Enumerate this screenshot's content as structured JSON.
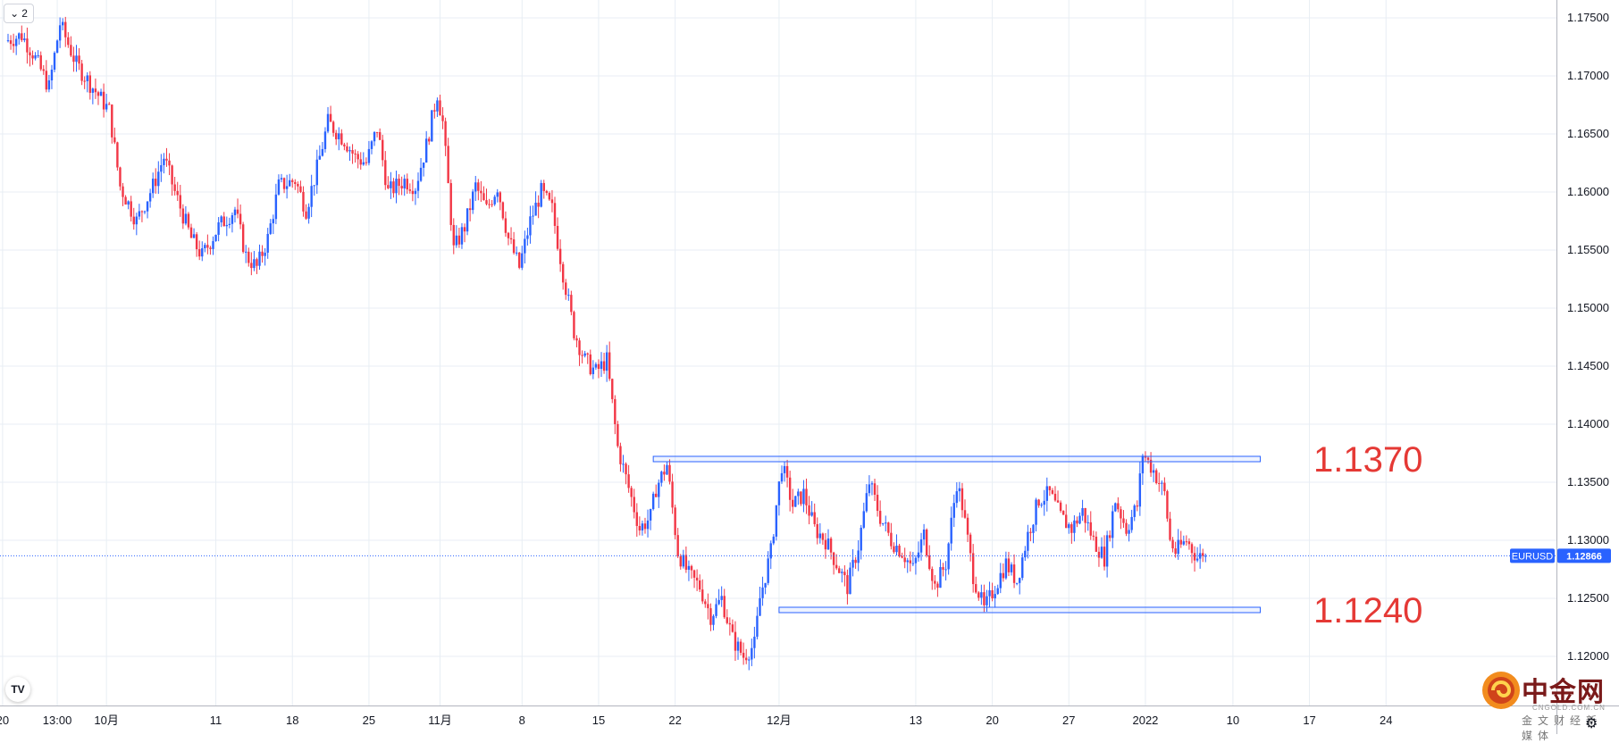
{
  "ui": {
    "collapse_count": "2",
    "symbol": "EURUSD",
    "current_price_label": "1.12866",
    "watermark_cn": "中金网",
    "watermark_site": "CNGOLD.COM.CN",
    "watermark_sub": "金文财经新媒体",
    "logo_text": "TV"
  },
  "colors": {
    "up": "#2962ff",
    "down": "#f23645",
    "grid": "#e8eef4",
    "level_line": "#2962ff",
    "level_text": "#e53935",
    "price_tag_bg": "#2962ff"
  },
  "chart_data": {
    "type": "candlestick",
    "title": "",
    "xlabel": "",
    "ylabel": "",
    "ylim": [
      1.1188,
      1.1758
    ],
    "price_ticks": [
      "1.17500",
      "1.17000",
      "1.16500",
      "1.16000",
      "1.15500",
      "1.15000",
      "1.14500",
      "1.14000",
      "1.13500",
      "1.13000",
      "1.12500",
      "1.12000"
    ],
    "time_ticks": [
      {
        "label": "20",
        "d": -1
      },
      {
        "label": "13:00",
        "d": 9
      },
      {
        "label": "10月",
        "d": 18
      },
      {
        "label": "11",
        "d": 38
      },
      {
        "label": "18",
        "d": 52
      },
      {
        "label": "25",
        "d": 66
      },
      {
        "label": "11月",
        "d": 79
      },
      {
        "label": "8",
        "d": 94
      },
      {
        "label": "15",
        "d": 108
      },
      {
        "label": "22",
        "d": 122
      },
      {
        "label": "12月",
        "d": 141
      },
      {
        "label": "13",
        "d": 166
      },
      {
        "label": "20",
        "d": 180
      },
      {
        "label": "27",
        "d": 194
      },
      {
        "label": "2022",
        "d": 208
      },
      {
        "label": "10",
        "d": 224
      },
      {
        "label": "17",
        "d": 238
      },
      {
        "label": "24",
        "d": 252
      }
    ],
    "grid": true,
    "current_price": 1.12866,
    "resistance": {
      "value": 1.137,
      "label": "1.1370",
      "d_start": 118,
      "d_end": 229
    },
    "support": {
      "value": 1.124,
      "label": "1.1240",
      "d_start": 141,
      "d_end": 229
    },
    "path": [
      {
        "d": 0,
        "p": 1.173
      },
      {
        "d": 3,
        "p": 1.1735
      },
      {
        "d": 5,
        "p": 1.172
      },
      {
        "d": 8,
        "p": 1.169
      },
      {
        "d": 10,
        "p": 1.1745
      },
      {
        "d": 13,
        "p": 1.171
      },
      {
        "d": 16,
        "p": 1.169
      },
      {
        "d": 19,
        "p": 1.167
      },
      {
        "d": 21,
        "p": 1.1605
      },
      {
        "d": 24,
        "p": 1.1575
      },
      {
        "d": 27,
        "p": 1.1605
      },
      {
        "d": 29,
        "p": 1.163
      },
      {
        "d": 31,
        "p": 1.16
      },
      {
        "d": 34,
        "p": 1.156
      },
      {
        "d": 36,
        "p": 1.1545
      },
      {
        "d": 39,
        "p": 1.157
      },
      {
        "d": 42,
        "p": 1.1585
      },
      {
        "d": 44,
        "p": 1.1545
      },
      {
        "d": 46,
        "p": 1.1535
      },
      {
        "d": 48,
        "p": 1.156
      },
      {
        "d": 50,
        "p": 1.1605
      },
      {
        "d": 53,
        "p": 1.161
      },
      {
        "d": 55,
        "p": 1.1585
      },
      {
        "d": 57,
        "p": 1.162
      },
      {
        "d": 59,
        "p": 1.166
      },
      {
        "d": 62,
        "p": 1.1645
      },
      {
        "d": 64,
        "p": 1.163
      },
      {
        "d": 66,
        "p": 1.1625
      },
      {
        "d": 68,
        "p": 1.1655
      },
      {
        "d": 70,
        "p": 1.16
      },
      {
        "d": 73,
        "p": 1.161
      },
      {
        "d": 75,
        "p": 1.1605
      },
      {
        "d": 77,
        "p": 1.164
      },
      {
        "d": 79,
        "p": 1.1685
      },
      {
        "d": 80,
        "p": 1.166
      },
      {
        "d": 82,
        "p": 1.155
      },
      {
        "d": 84,
        "p": 1.157
      },
      {
        "d": 86,
        "p": 1.1605
      },
      {
        "d": 88,
        "p": 1.1585
      },
      {
        "d": 90,
        "p": 1.1605
      },
      {
        "d": 92,
        "p": 1.156
      },
      {
        "d": 94,
        "p": 1.1535
      },
      {
        "d": 96,
        "p": 1.1575
      },
      {
        "d": 98,
        "p": 1.16
      },
      {
        "d": 100,
        "p": 1.1585
      },
      {
        "d": 102,
        "p": 1.153
      },
      {
        "d": 104,
        "p": 1.148
      },
      {
        "d": 106,
        "p": 1.1455
      },
      {
        "d": 108,
        "p": 1.1445
      },
      {
        "d": 110,
        "p": 1.1455
      },
      {
        "d": 112,
        "p": 1.138
      },
      {
        "d": 114,
        "p": 1.1345
      },
      {
        "d": 116,
        "p": 1.131
      },
      {
        "d": 118,
        "p": 1.132
      },
      {
        "d": 119,
        "p": 1.1345
      },
      {
        "d": 121,
        "p": 1.1365
      },
      {
        "d": 123,
        "p": 1.129
      },
      {
        "d": 125,
        "p": 1.127
      },
      {
        "d": 127,
        "p": 1.126
      },
      {
        "d": 129,
        "p": 1.1235
      },
      {
        "d": 131,
        "p": 1.125
      },
      {
        "d": 133,
        "p": 1.1215
      },
      {
        "d": 135,
        "p": 1.12
      },
      {
        "d": 137,
        "p": 1.121
      },
      {
        "d": 138,
        "p": 1.125
      },
      {
        "d": 140,
        "p": 1.129
      },
      {
        "d": 141,
        "p": 1.133
      },
      {
        "d": 142,
        "p": 1.1365
      },
      {
        "d": 144,
        "p": 1.133
      },
      {
        "d": 146,
        "p": 1.134
      },
      {
        "d": 148,
        "p": 1.131
      },
      {
        "d": 150,
        "p": 1.13
      },
      {
        "d": 152,
        "p": 1.128
      },
      {
        "d": 154,
        "p": 1.126
      },
      {
        "d": 156,
        "p": 1.1295
      },
      {
        "d": 158,
        "p": 1.135
      },
      {
        "d": 160,
        "p": 1.132
      },
      {
        "d": 162,
        "p": 1.13
      },
      {
        "d": 164,
        "p": 1.129
      },
      {
        "d": 166,
        "p": 1.1275
      },
      {
        "d": 168,
        "p": 1.1305
      },
      {
        "d": 170,
        "p": 1.126
      },
      {
        "d": 172,
        "p": 1.128
      },
      {
        "d": 174,
        "p": 1.135
      },
      {
        "d": 175,
        "p": 1.133
      },
      {
        "d": 177,
        "p": 1.127
      },
      {
        "d": 179,
        "p": 1.124
      },
      {
        "d": 181,
        "p": 1.126
      },
      {
        "d": 183,
        "p": 1.128
      },
      {
        "d": 185,
        "p": 1.1265
      },
      {
        "d": 187,
        "p": 1.1305
      },
      {
        "d": 189,
        "p": 1.1335
      },
      {
        "d": 191,
        "p": 1.134
      },
      {
        "d": 193,
        "p": 1.132
      },
      {
        "d": 195,
        "p": 1.131
      },
      {
        "d": 197,
        "p": 1.1325
      },
      {
        "d": 199,
        "p": 1.13
      },
      {
        "d": 201,
        "p": 1.1285
      },
      {
        "d": 203,
        "p": 1.1335
      },
      {
        "d": 205,
        "p": 1.131
      },
      {
        "d": 207,
        "p": 1.133
      },
      {
        "d": 208,
        "p": 1.1375
      },
      {
        "d": 210,
        "p": 1.136
      },
      {
        "d": 212,
        "p": 1.134
      },
      {
        "d": 213,
        "p": 1.13
      },
      {
        "d": 214,
        "p": 1.129
      },
      {
        "d": 216,
        "p": 1.13
      },
      {
        "d": 218,
        "p": 1.1285
      },
      {
        "d": 219,
        "p": 1.12866
      }
    ]
  }
}
